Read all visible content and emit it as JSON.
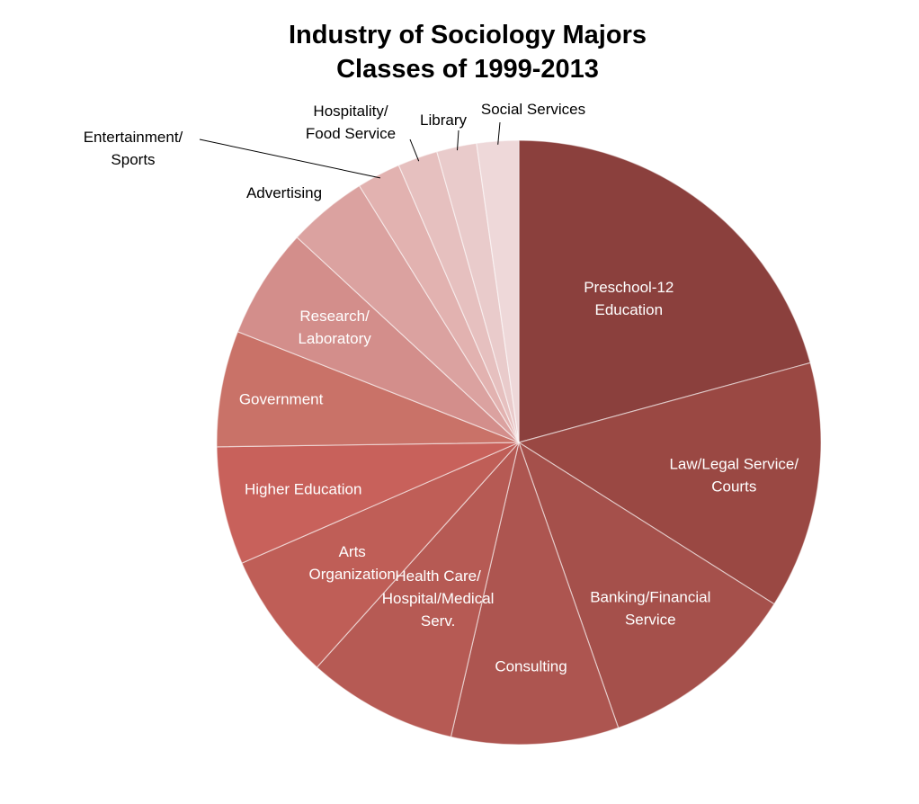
{
  "chart_data": {
    "type": "pie",
    "title": [
      "Industry of Sociology Majors",
      "Classes of 1999-2013"
    ],
    "categories": [
      "Preschool-12 Education",
      "Law/Legal Service/ Courts",
      "Banking/Financial Service",
      "Consulting",
      "Health Care/ Hospital/Medical Serv.",
      "Arts Organization",
      "Higher Education",
      "Government",
      "Research/ Laboratory",
      "Advertising",
      "Entertainment/ Sports",
      "Hospitality/ Food Service",
      "Library",
      "Social Services"
    ],
    "values": [
      20.4,
      13.0,
      10.5,
      8.8,
      7.9,
      6.7,
      6.2,
      6.1,
      5.8,
      4.2,
      2.3,
      2.1,
      2.1,
      2.2
    ],
    "unit": "percent (estimated share of slice)",
    "colors": [
      "#8b403d",
      "#9a4843",
      "#a5504b",
      "#ad5550",
      "#b65a54",
      "#bf5e57",
      "#c8615b",
      "#c97268",
      "#d38e8b",
      "#dba2a0",
      "#e2b2b0",
      "#e6c0bf",
      "#e9cbcb",
      "#eed8d9"
    ],
    "label_lines": [
      [
        "Preschool-12",
        "Education"
      ],
      [
        "Law/Legal Service/",
        "Courts"
      ],
      [
        "Banking/Financial",
        "Service"
      ],
      [
        "Consulting"
      ],
      [
        "Health Care/",
        "Hospital/Medical",
        "Serv."
      ],
      [
        "Arts",
        "Organization"
      ],
      [
        "Higher Education"
      ],
      [
        "Government"
      ],
      [
        "Research/",
        "Laboratory"
      ],
      [
        "Advertising"
      ],
      [
        "Entertainment/",
        "Sports"
      ],
      [
        "Hospitality/",
        "Food Service"
      ],
      [
        "Library"
      ],
      [
        "Social Services"
      ]
    ],
    "label_inside": [
      true,
      true,
      true,
      true,
      true,
      true,
      true,
      true,
      true,
      false,
      false,
      false,
      false,
      false
    ],
    "start": "12 o'clock, clockwise",
    "legend": "none (labels on slices)"
  }
}
